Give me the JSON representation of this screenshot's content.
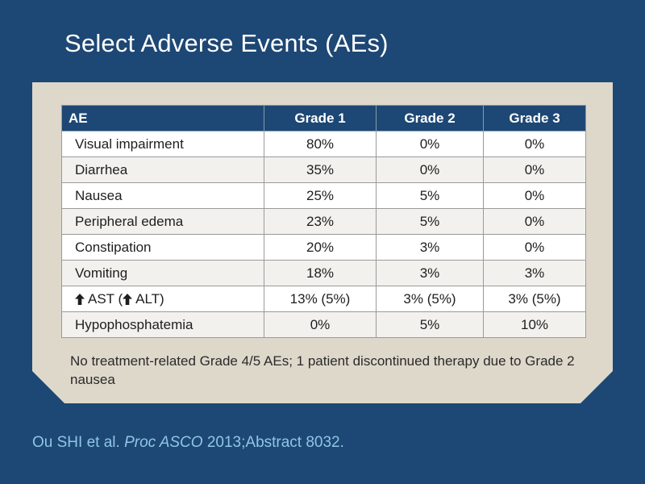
{
  "slide": {
    "title": "Select Adverse Events (AEs)"
  },
  "table": {
    "headers": [
      "AE",
      "Grade 1",
      "Grade 2",
      "Grade 3"
    ],
    "rows": [
      {
        "ae": "Visual impairment",
        "g1": "80%",
        "g2": "0%",
        "g3": "0%"
      },
      {
        "ae": "Diarrhea",
        "g1": "35%",
        "g2": "0%",
        "g3": "0%"
      },
      {
        "ae": "Nausea",
        "g1": "25%",
        "g2": "5%",
        "g3": "0%"
      },
      {
        "ae": "Peripheral edema",
        "g1": "23%",
        "g2": "5%",
        "g3": "0%"
      },
      {
        "ae": "Constipation",
        "g1": "20%",
        "g2": "3%",
        "g3": "0%"
      },
      {
        "ae": "Vomiting",
        "g1": "18%",
        "g2": "3%",
        "g3": "3%"
      },
      {
        "ae_part1": "AST (",
        "ae_part2": "ALT)",
        "g1": "13% (5%)",
        "g2": "3% (5%)",
        "g3": "3% (5%)",
        "icon": "up-arrow-icon"
      },
      {
        "ae": "Hypophosphatemia",
        "g1": "0%",
        "g2": "5%",
        "g3": "10%"
      }
    ]
  },
  "note": "No treatment-related Grade 4/5 AEs; 1 patient discontinued therapy due to Grade 2 nausea",
  "citation": {
    "authors": "Ou SHI et al.",
    "journal": "Proc ASCO",
    "rest": "2013;Abstract 8032."
  },
  "colors": {
    "background": "#1d4774",
    "panel": "#ded8cb",
    "header": "#1d4774",
    "citation": "#8fc6e8"
  }
}
